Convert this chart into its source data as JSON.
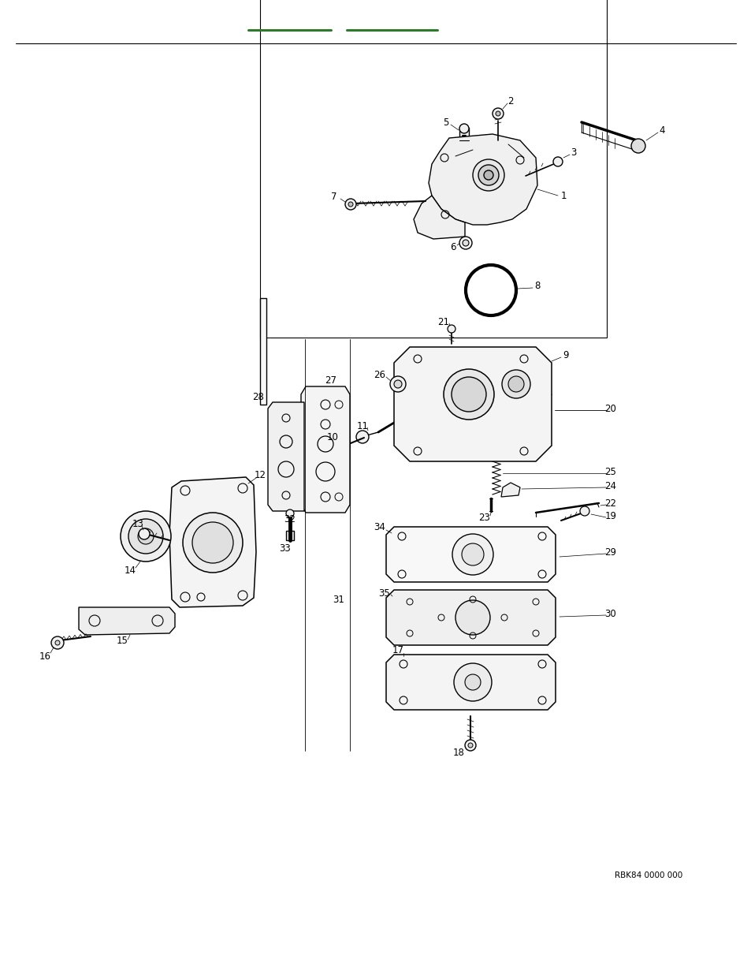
{
  "bg_color": "#ffffff",
  "green_color": "#2d7a2d",
  "black": "#000000",
  "lw_main": 1.0,
  "lw_thin": 0.5,
  "fs_label": 8.5,
  "footer_text": "RBK84 0000 000",
  "green_line1": [
    315,
    420,
    38
  ],
  "green_line2": [
    440,
    555,
    38
  ],
  "header_line": [
    20,
    934,
    55
  ]
}
